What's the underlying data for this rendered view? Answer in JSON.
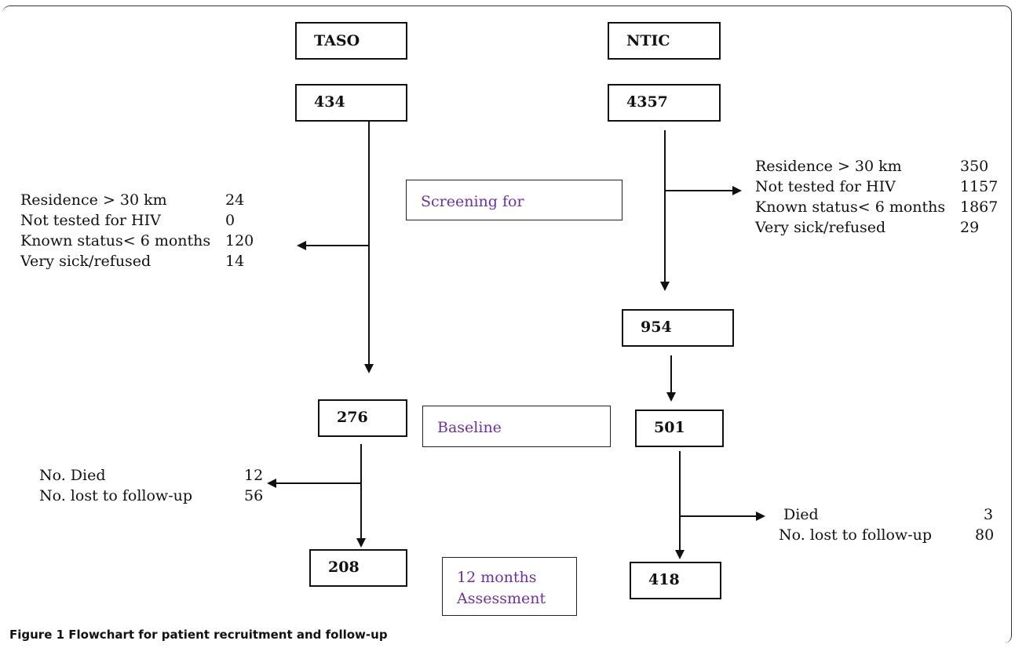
{
  "sites": {
    "left": "TASO",
    "right": "NTIC"
  },
  "taso": {
    "screened": "434",
    "exclusions": [
      {
        "label": "Residence > 30 km",
        "value": "24"
      },
      {
        "label": "Not tested for HIV",
        "value": "0"
      },
      {
        "label": "Known status< 6 months",
        "value": "120"
      },
      {
        "label": "Very sick/refused",
        "value": "14"
      }
    ],
    "baseline": "276",
    "losses": [
      {
        "label": "No. Died",
        "value": "12"
      },
      {
        "label": "No. lost to follow-up",
        "value": "56"
      }
    ],
    "final": "208"
  },
  "ntic": {
    "screened": "4357",
    "exclusions": [
      {
        "label": "Residence > 30 km",
        "value": "350"
      },
      {
        "label": "Not tested for HIV",
        "value": "1157"
      },
      {
        "label": "Known status< 6 months",
        "value": "1867"
      },
      {
        "label": "Very sick/refused",
        "value": "29"
      }
    ],
    "eligible": "954",
    "baseline": "501",
    "losses": [
      {
        "label": "Died",
        "value": "3"
      },
      {
        "label": "No. lost to follow-up",
        "value": "80"
      }
    ],
    "final": "418"
  },
  "stages": {
    "screening": "Screening for",
    "baseline": "Baseline",
    "assessment_line1": "12 months",
    "assessment_line2": "Assessment"
  },
  "caption": "Figure 1 Flowchart for patient recruitment and follow-up",
  "colors": {
    "stage_text": "#7030a0",
    "lines": "#111111"
  }
}
